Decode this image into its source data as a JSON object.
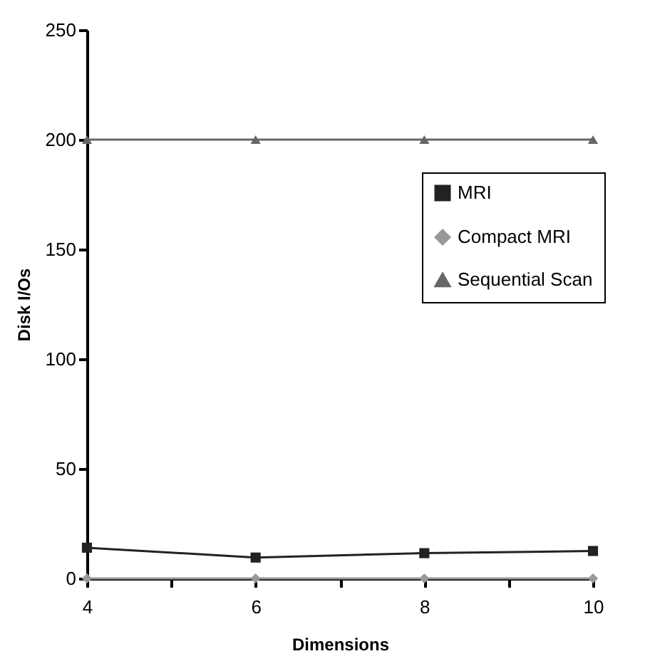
{
  "chart_data": {
    "type": "line",
    "xlabel": "Dimensions",
    "ylabel": "Disk I/Os",
    "x": [
      4,
      6,
      8,
      10
    ],
    "series": [
      {
        "name": "MRI",
        "color": "#222222",
        "marker": "square",
        "values": [
          14,
          9.5,
          11.5,
          12.5
        ]
      },
      {
        "name": "Compact MRI",
        "color": "#999999",
        "marker": "diamond",
        "values": [
          0,
          0,
          0,
          0
        ]
      },
      {
        "name": "Sequential Scan",
        "color": "#666666",
        "marker": "triangle",
        "values": [
          200,
          200,
          200,
          200
        ]
      }
    ],
    "xlim": [
      4,
      10
    ],
    "xticks": [
      4,
      {
        "value": 5,
        "label": null
      },
      6,
      {
        "value": 7,
        "label": null
      },
      8,
      {
        "value": 9,
        "label": null
      },
      10
    ],
    "ylim": [
      0,
      250
    ],
    "yticks": [
      0,
      50,
      100,
      150,
      200,
      250
    ],
    "grid": false,
    "legend": "right",
    "line_style": "solid"
  }
}
